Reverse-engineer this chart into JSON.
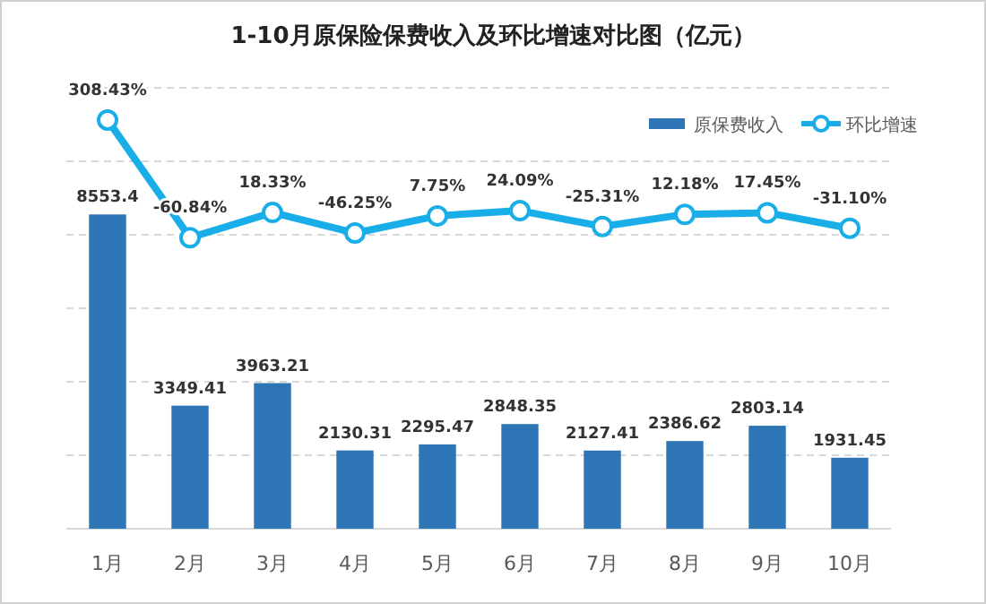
{
  "chart_data": {
    "type": "bar",
    "title": "1-10月原保险保费收入及环比增速对比图（亿元）",
    "categories": [
      "1月",
      "2月",
      "3月",
      "4月",
      "5月",
      "6月",
      "7月",
      "8月",
      "9月",
      "10月"
    ],
    "series": [
      {
        "name": "原保费收入",
        "color": "#2e75b6",
        "values": [
          8553.4,
          3349.41,
          3963.21,
          2130.31,
          2295.47,
          2848.35,
          2127.41,
          2386.62,
          2803.14,
          1931.45
        ],
        "value_labels": [
          "8553.4",
          "3349.41",
          "3963.21",
          "2130.31",
          "2295.47",
          "2848.35",
          "2127.41",
          "2386.62",
          "2803.14",
          "1931.45"
        ]
      },
      {
        "name": "环比增速",
        "type": "line",
        "axis": "y2",
        "color": "#1aaee8",
        "values": [
          308.43,
          -60.84,
          18.33,
          -46.25,
          7.75,
          24.09,
          -25.31,
          12.18,
          17.45,
          -31.1
        ],
        "value_labels": [
          "308.43%",
          "-60.84%",
          "18.33%",
          "-46.25%",
          "7.75%",
          "24.09%",
          "-25.31%",
          "12.18%",
          "17.45%",
          "-31.10%"
        ]
      }
    ],
    "ylim": [
      0,
      12000
    ],
    "yticks": [
      {
        "value": 0,
        "label": null
      },
      {
        "value": 2000,
        "label": null
      },
      {
        "value": 4000,
        "label": null
      },
      {
        "value": 6000,
        "label": null
      },
      {
        "value": 8000,
        "label": null
      },
      {
        "value": 10000,
        "label": null
      },
      {
        "value": 12000,
        "label": null
      }
    ],
    "tick_labels": "x",
    "grid": "y",
    "legend": "top right",
    "marker": "circle",
    "line_style": "solid"
  }
}
